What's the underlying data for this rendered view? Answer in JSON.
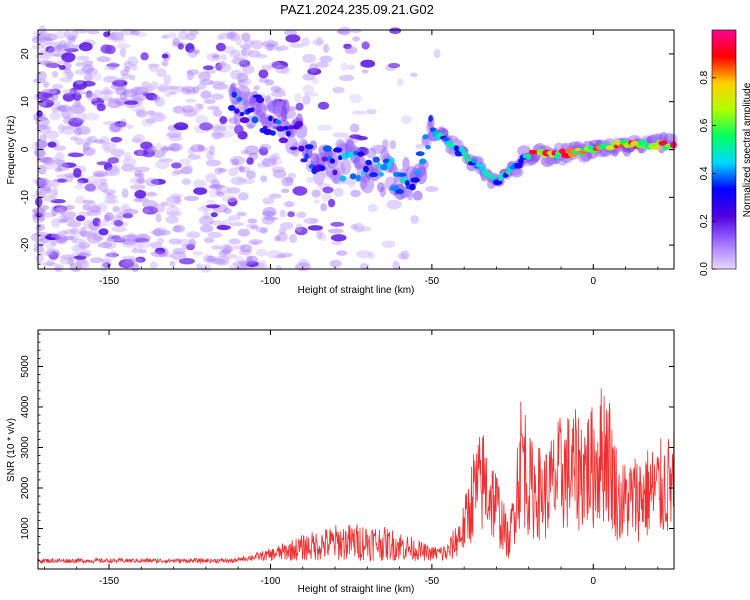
{
  "title": "PAZ1.2024.235.09.21.G02",
  "chart_data": [
    {
      "type": "heatmap",
      "xlabel": "Height of straight line (km)",
      "ylabel": "Frequency (Hz)",
      "xlim": [
        -172,
        25
      ],
      "ylim": [
        -25,
        25
      ],
      "xticks": [
        -150,
        -100,
        -50,
        0
      ],
      "yticks": [
        -20,
        -10,
        0,
        10,
        20
      ],
      "colorbar": {
        "label": "Normalized spectral amplitude",
        "range": [
          0,
          1
        ],
        "ticks": [
          "0.0",
          "0.2",
          "0.4",
          "0.6",
          "0.8"
        ],
        "colormap": [
          "#e8d8ff",
          "#a070ff",
          "#5000e0",
          "#0000ff",
          "#00d8ff",
          "#00ff60",
          "#b0ff00",
          "#ffd000",
          "#ff0000",
          "#ff0090"
        ]
      },
      "ridge": [
        {
          "x": -110,
          "f": 10
        },
        {
          "x": -95,
          "f": 5
        },
        {
          "x": -85,
          "f": -2
        },
        {
          "x": -70,
          "f": -4
        },
        {
          "x": -55,
          "f": -7
        },
        {
          "x": -50,
          "f": 4
        },
        {
          "x": -40,
          "f": -1
        },
        {
          "x": -30,
          "f": -7
        },
        {
          "x": -25,
          "f": -4
        },
        {
          "x": -20,
          "f": -1
        },
        {
          "x": -10,
          "f": -1
        },
        {
          "x": 0,
          "f": 0
        },
        {
          "x": 10,
          "f": 1
        },
        {
          "x": 25,
          "f": 1
        }
      ]
    },
    {
      "type": "line",
      "xlabel": "Height of straight line (km)",
      "ylabel": "SNR (10 * v/v)",
      "xlim": [
        -172,
        25
      ],
      "ylim": [
        0,
        5900
      ],
      "xticks": [
        -150,
        -100,
        -50,
        0
      ],
      "yticks": [
        1000,
        2000,
        3000,
        4000,
        5000
      ],
      "color": "#ee3030",
      "envelope": [
        {
          "x": -172,
          "y": 200
        },
        {
          "x": -140,
          "y": 200
        },
        {
          "x": -110,
          "y": 230
        },
        {
          "x": -100,
          "y": 450
        },
        {
          "x": -90,
          "y": 800
        },
        {
          "x": -80,
          "y": 1050
        },
        {
          "x": -70,
          "y": 1100
        },
        {
          "x": -60,
          "y": 900
        },
        {
          "x": -50,
          "y": 500
        },
        {
          "x": -45,
          "y": 600
        },
        {
          "x": -40,
          "y": 1500
        },
        {
          "x": -37,
          "y": 2800
        },
        {
          "x": -34,
          "y": 3200
        },
        {
          "x": -30,
          "y": 2300
        },
        {
          "x": -26,
          "y": 900
        },
        {
          "x": -24,
          "y": 2800
        },
        {
          "x": -22,
          "y": 4400
        },
        {
          "x": -20,
          "y": 3000
        },
        {
          "x": -15,
          "y": 2700
        },
        {
          "x": -10,
          "y": 3500
        },
        {
          "x": -5,
          "y": 3600
        },
        {
          "x": 0,
          "y": 3700
        },
        {
          "x": 4,
          "y": 4500
        },
        {
          "x": 8,
          "y": 2400
        },
        {
          "x": 15,
          "y": 2700
        },
        {
          "x": 25,
          "y": 3100
        }
      ]
    }
  ]
}
